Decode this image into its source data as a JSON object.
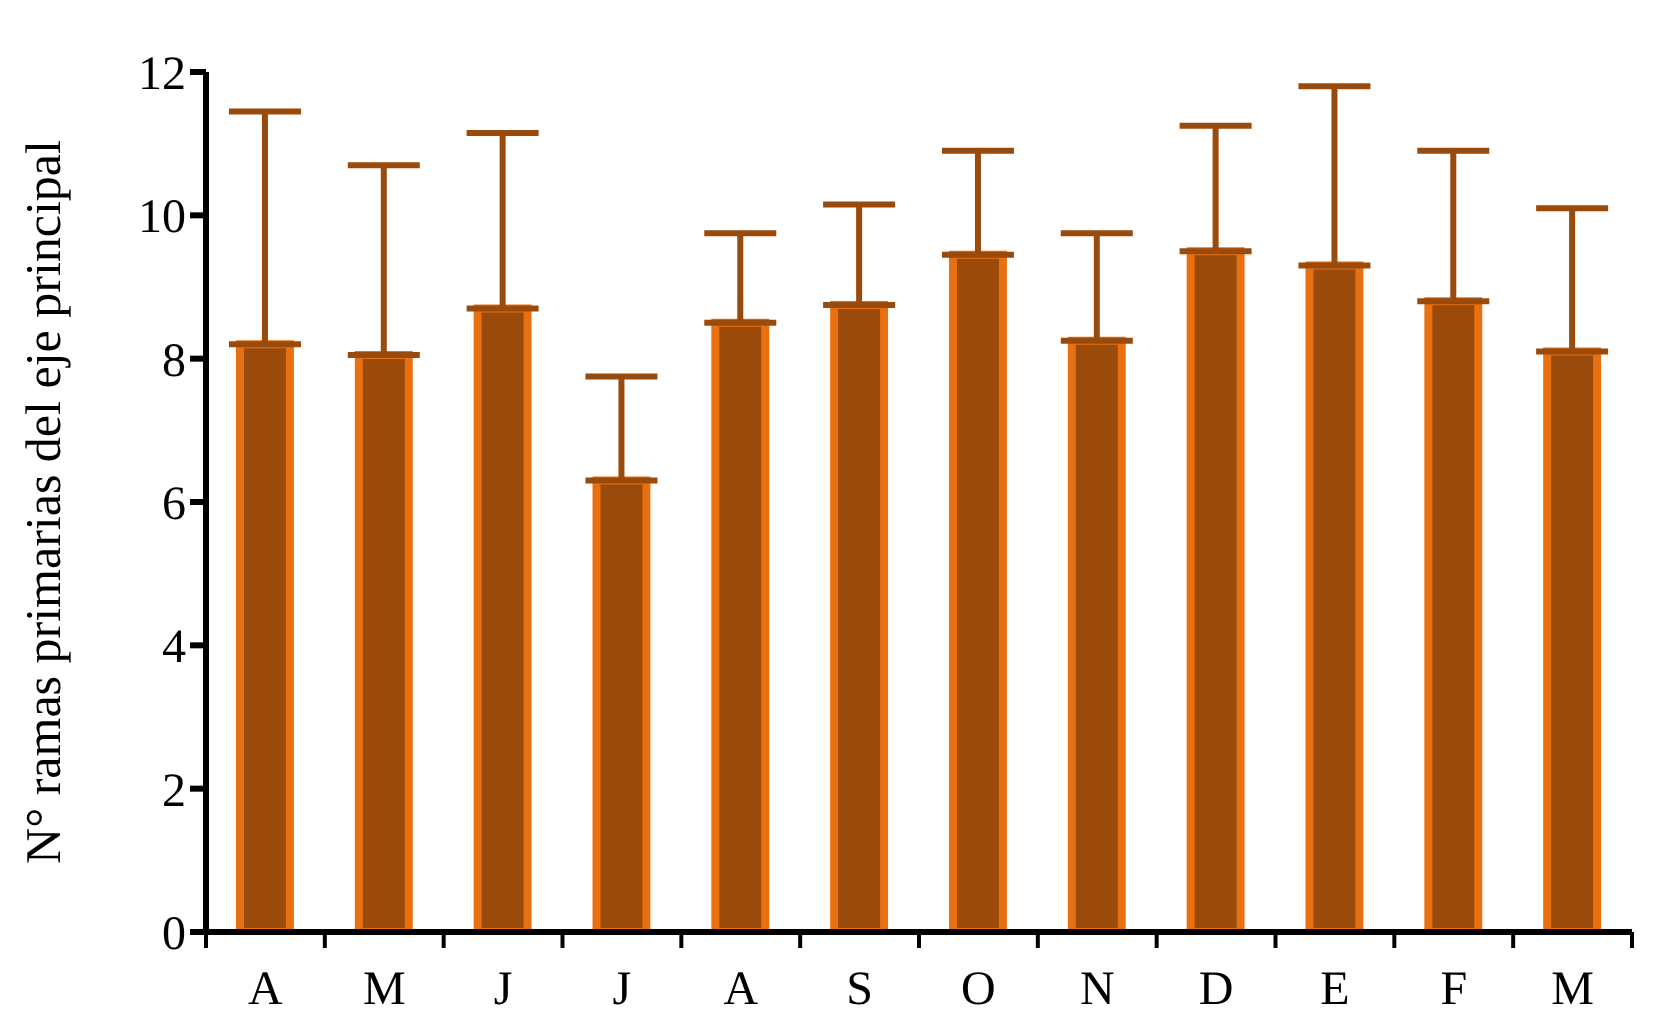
{
  "chart_data": {
    "type": "bar",
    "ylabel": "N° ramas primarias del eje principal",
    "categories": [
      "A",
      "M",
      "J",
      "J",
      "A",
      "S",
      "O",
      "N",
      "D",
      "E",
      "F",
      "M"
    ],
    "series": [
      {
        "color": "#9a4a0a",
        "values": [
          8.2,
          8.05,
          8.7,
          6.3,
          8.5,
          8.75,
          9.45,
          8.25,
          9.5,
          9.3,
          8.8,
          8.1
        ],
        "errors": [
          [
            8.2,
            11.45
          ],
          [
            8.05,
            10.7
          ],
          [
            8.7,
            11.15
          ],
          [
            6.3,
            7.75
          ],
          [
            8.5,
            9.75
          ],
          [
            8.75,
            10.15
          ],
          [
            9.45,
            10.9
          ],
          [
            8.25,
            9.75
          ],
          [
            9.5,
            11.25
          ],
          [
            9.3,
            11.8
          ],
          [
            8.8,
            10.9
          ],
          [
            8.1,
            10.1
          ]
        ]
      }
    ],
    "ylim": [
      0,
      12
    ],
    "yticks": [
      0,
      2,
      4,
      6,
      8,
      10,
      12
    ],
    "grid": false,
    "legend": false
  }
}
